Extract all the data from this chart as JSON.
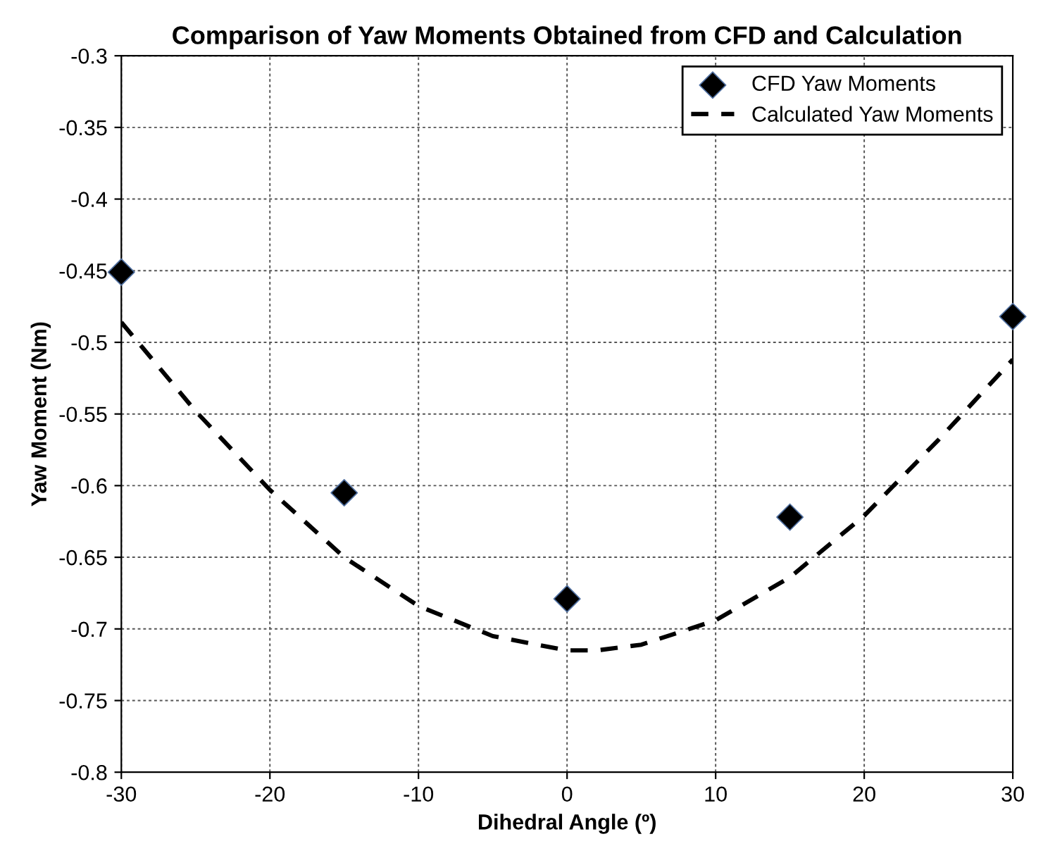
{
  "chart_data": {
    "type": "scatter",
    "title": "Comparison of Yaw Moments Obtained from CFD and Calculation",
    "xlabel": "Dihedral Angle (º)",
    "ylabel": "Yaw Moment (Nm)",
    "series": [
      {
        "name": "CFD Yaw Moments",
        "color": "#000000",
        "marker": "diamond",
        "x": [
          -30,
          -15,
          0,
          15,
          30
        ],
        "values": [
          -0.451,
          -0.605,
          -0.679,
          -0.622,
          -0.482
        ]
      },
      {
        "name": "Calculated Yaw Moments",
        "type": "line",
        "color": "#000000",
        "marker": "none",
        "line_style": "dashed",
        "x": [
          -30,
          -25,
          -20,
          -15,
          -10,
          -5,
          0,
          2,
          5,
          10,
          15,
          20,
          25,
          30
        ],
        "values": [
          -0.486,
          -0.548,
          -0.603,
          -0.65,
          -0.684,
          -0.705,
          -0.715,
          -0.715,
          -0.711,
          -0.694,
          -0.664,
          -0.621,
          -0.568,
          -0.512
        ]
      }
    ],
    "xlim": [
      -30,
      30
    ],
    "xticks": [
      -30,
      -20,
      -10,
      0,
      10,
      20,
      30
    ],
    "ylim": [
      -0.8,
      -0.3
    ],
    "yticks": [
      -0.8,
      -0.75,
      -0.7,
      -0.65,
      -0.6,
      -0.55,
      -0.5,
      -0.45,
      -0.4,
      -0.35,
      -0.3
    ],
    "grid": true,
    "legend": "top right"
  }
}
